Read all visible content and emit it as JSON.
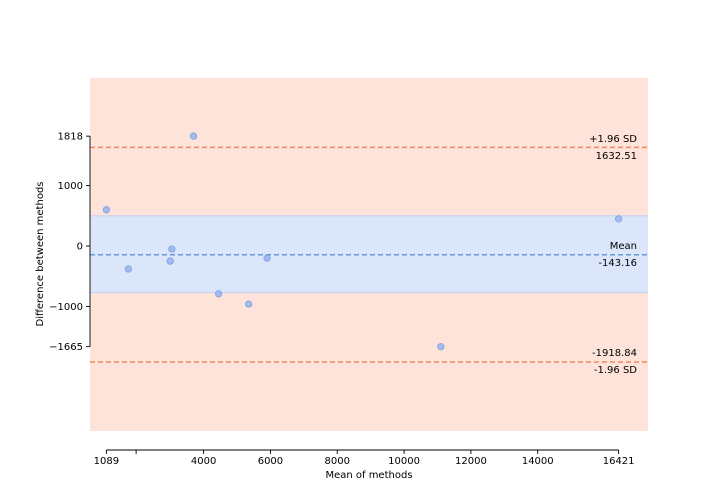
{
  "chart_data": {
    "type": "scatter",
    "title": "",
    "xlabel": "Mean of methods",
    "ylabel": "Difference between methods",
    "xlim": [
      600,
      17300
    ],
    "ylim": [
      -3060,
      2780
    ],
    "x_ticks": [
      {
        "value": 1089,
        "label": "1089"
      },
      {
        "value": 1980,
        "label": ""
      },
      {
        "value": 4000,
        "label": "4000"
      },
      {
        "value": 6000,
        "label": "6000"
      },
      {
        "value": 8000,
        "label": "8000"
      },
      {
        "value": 10000,
        "label": "10000"
      },
      {
        "value": 12000,
        "label": "12000"
      },
      {
        "value": 14000,
        "label": "14000"
      },
      {
        "value": 16421,
        "label": "16421"
      }
    ],
    "y_ticks": [
      {
        "value": 1818,
        "label": "1818"
      },
      {
        "value": 1000,
        "label": "1000"
      },
      {
        "value": 0,
        "label": "0"
      },
      {
        "value": -1000,
        "label": "−1000"
      },
      {
        "value": -1665,
        "label": "−1665"
      }
    ],
    "points": [
      {
        "x": 1089,
        "y": 600
      },
      {
        "x": 1750,
        "y": -380
      },
      {
        "x": 3000,
        "y": -250
      },
      {
        "x": 3050,
        "y": -50
      },
      {
        "x": 3700,
        "y": 1818
      },
      {
        "x": 4450,
        "y": -790
      },
      {
        "x": 5350,
        "y": -960
      },
      {
        "x": 5900,
        "y": -200
      },
      {
        "x": 11100,
        "y": -1665
      },
      {
        "x": 16421,
        "y": 450
      }
    ],
    "mean": -143.16,
    "upper_loa": 1632.51,
    "lower_loa": -1918.84,
    "mean_ci": [
      -770,
      500
    ],
    "labels": {
      "upper_sd": "+1.96 SD",
      "upper_value": "1632.51",
      "mean_label": "Mean",
      "mean_value": "-143.16",
      "lower_value": "-1918.84",
      "lower_sd": "-1.96 SD"
    },
    "colors": {
      "outer_band": "#fee3da",
      "mean_band": "#dce6fa",
      "mean_band_edge": "#c6d3ef",
      "loa_line": "#f08a62",
      "mean_line": "#6a98d8",
      "point_fill": "#9ab6ee",
      "point_edge": "#7d9fe0"
    },
    "grid": false
  }
}
